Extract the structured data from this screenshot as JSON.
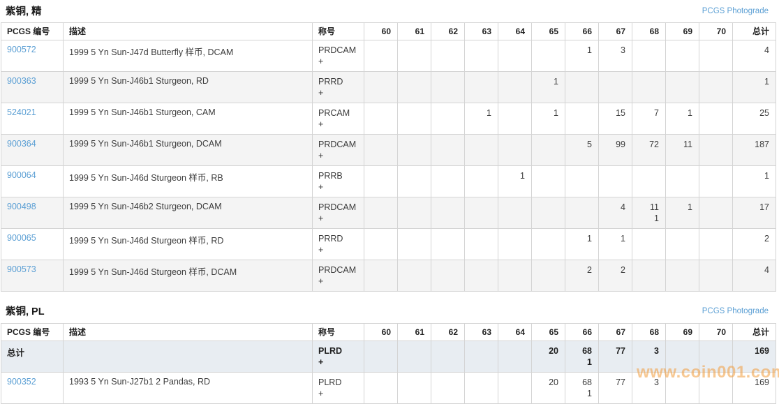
{
  "photograde_label": "PCGS Photograde",
  "watermark": "www.coin001.com",
  "plus_label": "+",
  "columns": {
    "number": "PCGS 编号",
    "description": "描述",
    "designation": "称号",
    "total": "总计"
  },
  "grade_columns": [
    "60",
    "61",
    "62",
    "63",
    "64",
    "65",
    "66",
    "67",
    "68",
    "69",
    "70"
  ],
  "sections": [
    {
      "title": "紫铜, 精",
      "rows": [
        {
          "number": "900572",
          "link": true,
          "bold": false,
          "description": "1999 5 Yn Sun-J47d Butterfly 样币, DCAM",
          "designation": "PRDCAM",
          "grades": [
            "",
            "",
            "",
            "",
            "",
            "",
            "1",
            "3",
            "",
            "",
            ""
          ],
          "plus": [
            "",
            "",
            "",
            "",
            "",
            "",
            "",
            "",
            "",
            "",
            ""
          ],
          "total": "4"
        },
        {
          "number": "900363",
          "link": true,
          "bold": false,
          "description": "1999 5 Yn Sun-J46b1 Sturgeon, RD",
          "designation": "PRRD",
          "grades": [
            "",
            "",
            "",
            "",
            "",
            "1",
            "",
            "",
            "",
            "",
            ""
          ],
          "plus": [
            "",
            "",
            "",
            "",
            "",
            "",
            "",
            "",
            "",
            "",
            ""
          ],
          "total": "1"
        },
        {
          "number": "524021",
          "link": true,
          "bold": false,
          "description": "1999 5 Yn Sun-J46b1 Sturgeon, CAM",
          "designation": "PRCAM",
          "grades": [
            "",
            "",
            "",
            "1",
            "",
            "1",
            "",
            "15",
            "7",
            "1",
            ""
          ],
          "plus": [
            "",
            "",
            "",
            "",
            "",
            "",
            "",
            "",
            "",
            "",
            ""
          ],
          "total": "25"
        },
        {
          "number": "900364",
          "link": true,
          "bold": false,
          "description": "1999 5 Yn Sun-J46b1 Sturgeon, DCAM",
          "designation": "PRDCAM",
          "grades": [
            "",
            "",
            "",
            "",
            "",
            "",
            "5",
            "99",
            "72",
            "11",
            ""
          ],
          "plus": [
            "",
            "",
            "",
            "",
            "",
            "",
            "",
            "",
            "",
            "",
            ""
          ],
          "total": "187"
        },
        {
          "number": "900064",
          "link": true,
          "bold": false,
          "description": "1999 5 Yn Sun-J46d Sturgeon 样币, RB",
          "designation": "PRRB",
          "grades": [
            "",
            "",
            "",
            "",
            "1",
            "",
            "",
            "",
            "",
            "",
            ""
          ],
          "plus": [
            "",
            "",
            "",
            "",
            "",
            "",
            "",
            "",
            "",
            "",
            ""
          ],
          "total": "1"
        },
        {
          "number": "900498",
          "link": true,
          "bold": false,
          "description": "1999 5 Yn Sun-J46b2 Sturgeon, DCAM",
          "designation": "PRDCAM",
          "grades": [
            "",
            "",
            "",
            "",
            "",
            "",
            "",
            "4",
            "11",
            "1",
            ""
          ],
          "plus": [
            "",
            "",
            "",
            "",
            "",
            "",
            "",
            "",
            "1",
            "",
            ""
          ],
          "total": "17"
        },
        {
          "number": "900065",
          "link": true,
          "bold": false,
          "description": "1999 5 Yn Sun-J46d Sturgeon 样币, RD",
          "designation": "PRRD",
          "grades": [
            "",
            "",
            "",
            "",
            "",
            "",
            "1",
            "1",
            "",
            "",
            ""
          ],
          "plus": [
            "",
            "",
            "",
            "",
            "",
            "",
            "",
            "",
            "",
            "",
            ""
          ],
          "total": "2"
        },
        {
          "number": "900573",
          "link": true,
          "bold": false,
          "description": "1999 5 Yn Sun-J46d Sturgeon 样币, DCAM",
          "designation": "PRDCAM",
          "grades": [
            "",
            "",
            "",
            "",
            "",
            "",
            "2",
            "2",
            "",
            "",
            ""
          ],
          "plus": [
            "",
            "",
            "",
            "",
            "",
            "",
            "",
            "",
            "",
            "",
            ""
          ],
          "total": "4"
        }
      ]
    },
    {
      "title": "紫铜, PL",
      "rows": [
        {
          "number": "总计",
          "link": false,
          "bold": true,
          "description": "",
          "designation": "PLRD",
          "grades": [
            "",
            "",
            "",
            "",
            "",
            "20",
            "68",
            "77",
            "3",
            "",
            ""
          ],
          "plus": [
            "",
            "",
            "",
            "",
            "",
            "",
            "1",
            "",
            "",
            "",
            ""
          ],
          "total": "169"
        },
        {
          "number": "900352",
          "link": true,
          "bold": false,
          "description": "1993 5 Yn Sun-J27b1 2 Pandas, RD",
          "designation": "PLRD",
          "grades": [
            "",
            "",
            "",
            "",
            "",
            "20",
            "68",
            "77",
            "3",
            "",
            ""
          ],
          "plus": [
            "",
            "",
            "",
            "",
            "",
            "",
            "1",
            "",
            "",
            "",
            ""
          ],
          "total": "169"
        }
      ]
    }
  ]
}
